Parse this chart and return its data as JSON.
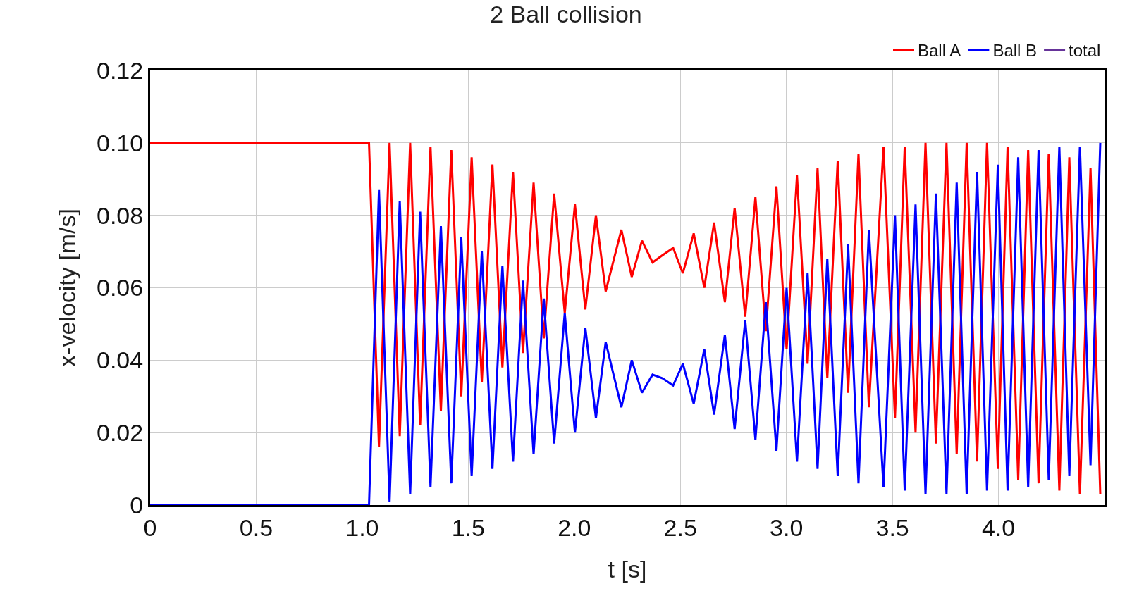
{
  "chart_data": {
    "type": "line",
    "title": "2 Ball collision",
    "xlabel": "t [s]",
    "ylabel": "x-velocity [m/s]",
    "xlim": [
      0,
      4.5
    ],
    "ylim": [
      0,
      0.12
    ],
    "xticks": [
      0,
      0.5,
      {
        "value": 1,
        "label": "1.0"
      },
      1.5,
      {
        "value": 2,
        "label": "2.0"
      },
      2.5,
      {
        "value": 3,
        "label": "3.0"
      },
      3.5,
      {
        "value": 4,
        "label": "4.0"
      }
    ],
    "yticks": [
      0,
      0.02,
      0.04,
      0.06,
      0.08,
      {
        "value": 0.1,
        "label": "0.10"
      },
      0.12
    ],
    "grid": true,
    "legend": "top right",
    "marker": "none",
    "line_style": "solid",
    "series": [
      {
        "name": "Ball A",
        "color": "#ff0000",
        "x": [
          0,
          1.032,
          1.079,
          1.129,
          1.177,
          1.226,
          1.273,
          1.322,
          1.371,
          1.42,
          1.467,
          1.516,
          1.564,
          1.614,
          1.661,
          1.711,
          1.758,
          1.808,
          1.856,
          1.905,
          1.955,
          2.003,
          2.052,
          2.102,
          2.148,
          2.222,
          2.271,
          2.319,
          2.369,
          2.416,
          2.466,
          2.512,
          2.563,
          2.613,
          2.659,
          2.71,
          2.756,
          2.806,
          2.854,
          2.903,
          2.953,
          3.001,
          3.05,
          3.1,
          3.147,
          3.193,
          3.242,
          3.291,
          3.34,
          3.389,
          3.458,
          3.512,
          3.558,
          3.609,
          3.656,
          3.705,
          3.755,
          3.803,
          3.85,
          3.899,
          3.946,
          3.997,
          4.043,
          4.093,
          4.14,
          4.189,
          4.237,
          4.287,
          4.334,
          4.384,
          4.434,
          4.48
        ],
        "values": [
          0.1,
          0.1,
          0.016,
          0.1,
          0.019,
          0.1,
          0.022,
          0.099,
          0.026,
          0.098,
          0.03,
          0.096,
          0.034,
          0.094,
          0.038,
          0.092,
          0.042,
          0.089,
          0.046,
          0.086,
          0.053,
          0.083,
          0.054,
          0.08,
          0.059,
          0.076,
          0.063,
          0.073,
          0.067,
          0.069,
          0.071,
          0.064,
          0.075,
          0.06,
          0.078,
          0.056,
          0.082,
          0.052,
          0.085,
          0.048,
          0.088,
          0.043,
          0.091,
          0.039,
          0.093,
          0.035,
          0.095,
          0.031,
          0.097,
          0.027,
          0.099,
          0.024,
          0.099,
          0.02,
          0.1,
          0.017,
          0.1,
          0.014,
          0.1,
          0.012,
          0.1,
          0.01,
          0.099,
          0.007,
          0.098,
          0.006,
          0.097,
          0.004,
          0.096,
          0.003,
          0.093,
          0.003
        ]
      },
      {
        "name": "Ball B",
        "color": "#0000ff",
        "x": [
          0,
          1.032,
          1.079,
          1.129,
          1.177,
          1.226,
          1.273,
          1.322,
          1.371,
          1.42,
          1.467,
          1.516,
          1.564,
          1.614,
          1.661,
          1.711,
          1.758,
          1.808,
          1.856,
          1.905,
          1.955,
          2.003,
          2.052,
          2.102,
          2.148,
          2.222,
          2.271,
          2.319,
          2.369,
          2.416,
          2.466,
          2.512,
          2.563,
          2.613,
          2.659,
          2.71,
          2.756,
          2.806,
          2.854,
          2.903,
          2.953,
          3.001,
          3.05,
          3.1,
          3.147,
          3.193,
          3.242,
          3.291,
          3.34,
          3.389,
          3.458,
          3.512,
          3.558,
          3.609,
          3.656,
          3.705,
          3.755,
          3.803,
          3.85,
          3.899,
          3.946,
          3.997,
          4.043,
          4.093,
          4.14,
          4.189,
          4.237,
          4.287,
          4.334,
          4.384,
          4.434,
          4.48
        ],
        "values": [
          0,
          0,
          0.087,
          0.001,
          0.084,
          0.003,
          0.081,
          0.005,
          0.077,
          0.006,
          0.074,
          0.008,
          0.07,
          0.01,
          0.066,
          0.012,
          0.062,
          0.014,
          0.057,
          0.017,
          0.053,
          0.02,
          0.049,
          0.024,
          0.045,
          0.027,
          0.04,
          0.031,
          0.036,
          0.035,
          0.033,
          0.039,
          0.028,
          0.043,
          0.025,
          0.047,
          0.021,
          0.051,
          0.018,
          0.056,
          0.015,
          0.06,
          0.012,
          0.064,
          0.01,
          0.068,
          0.008,
          0.072,
          0.006,
          0.076,
          0.005,
          0.08,
          0.004,
          0.083,
          0.003,
          0.086,
          0.003,
          0.089,
          0.003,
          0.092,
          0.004,
          0.094,
          0.004,
          0.096,
          0.005,
          0.098,
          0.007,
          0.099,
          0.008,
          0.099,
          0.011,
          0.1
        ]
      },
      {
        "name": "total",
        "color": "#663399"
      }
    ]
  }
}
